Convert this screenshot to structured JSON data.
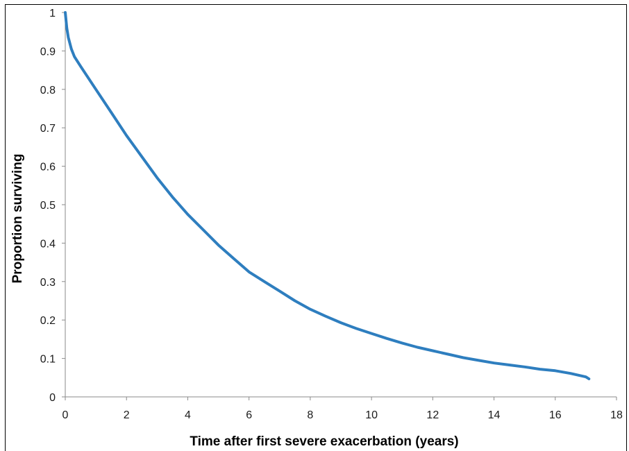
{
  "chart_data": {
    "type": "line",
    "title": "",
    "xlabel": "Time after first severe exacerbation (years)",
    "ylabel": "Proportion surviving",
    "xlim": [
      0,
      18
    ],
    "ylim": [
      0,
      1
    ],
    "x_ticks": [
      "0",
      "2",
      "4",
      "6",
      "8",
      "10",
      "12",
      "14",
      "16",
      "18"
    ],
    "y_ticks": [
      "0",
      "0.1",
      "0.2",
      "0.3",
      "0.4",
      "0.5",
      "0.6",
      "0.7",
      "0.8",
      "0.9",
      "1"
    ],
    "grid": false,
    "legend": "none",
    "series": [
      {
        "color": "#2e7ebf",
        "x": [
          0,
          0.05,
          0.1,
          0.2,
          0.3,
          0.5,
          0.75,
          1,
          1.5,
          2,
          2.5,
          3,
          3.5,
          4,
          4.5,
          5,
          5.5,
          6,
          6.5,
          7,
          7.5,
          8,
          8.5,
          9,
          9.5,
          10,
          10.5,
          11,
          11.5,
          12,
          12.5,
          13,
          13.5,
          14,
          14.5,
          15,
          15.5,
          16,
          16.5,
          17,
          17.1
        ],
        "y": [
          1.0,
          0.96,
          0.935,
          0.905,
          0.885,
          0.86,
          0.83,
          0.8,
          0.74,
          0.68,
          0.625,
          0.57,
          0.52,
          0.475,
          0.435,
          0.395,
          0.36,
          0.325,
          0.3,
          0.275,
          0.25,
          0.228,
          0.21,
          0.193,
          0.178,
          0.165,
          0.152,
          0.14,
          0.129,
          0.12,
          0.111,
          0.102,
          0.095,
          0.088,
          0.083,
          0.078,
          0.072,
          0.068,
          0.061,
          0.052,
          0.047
        ]
      }
    ]
  }
}
